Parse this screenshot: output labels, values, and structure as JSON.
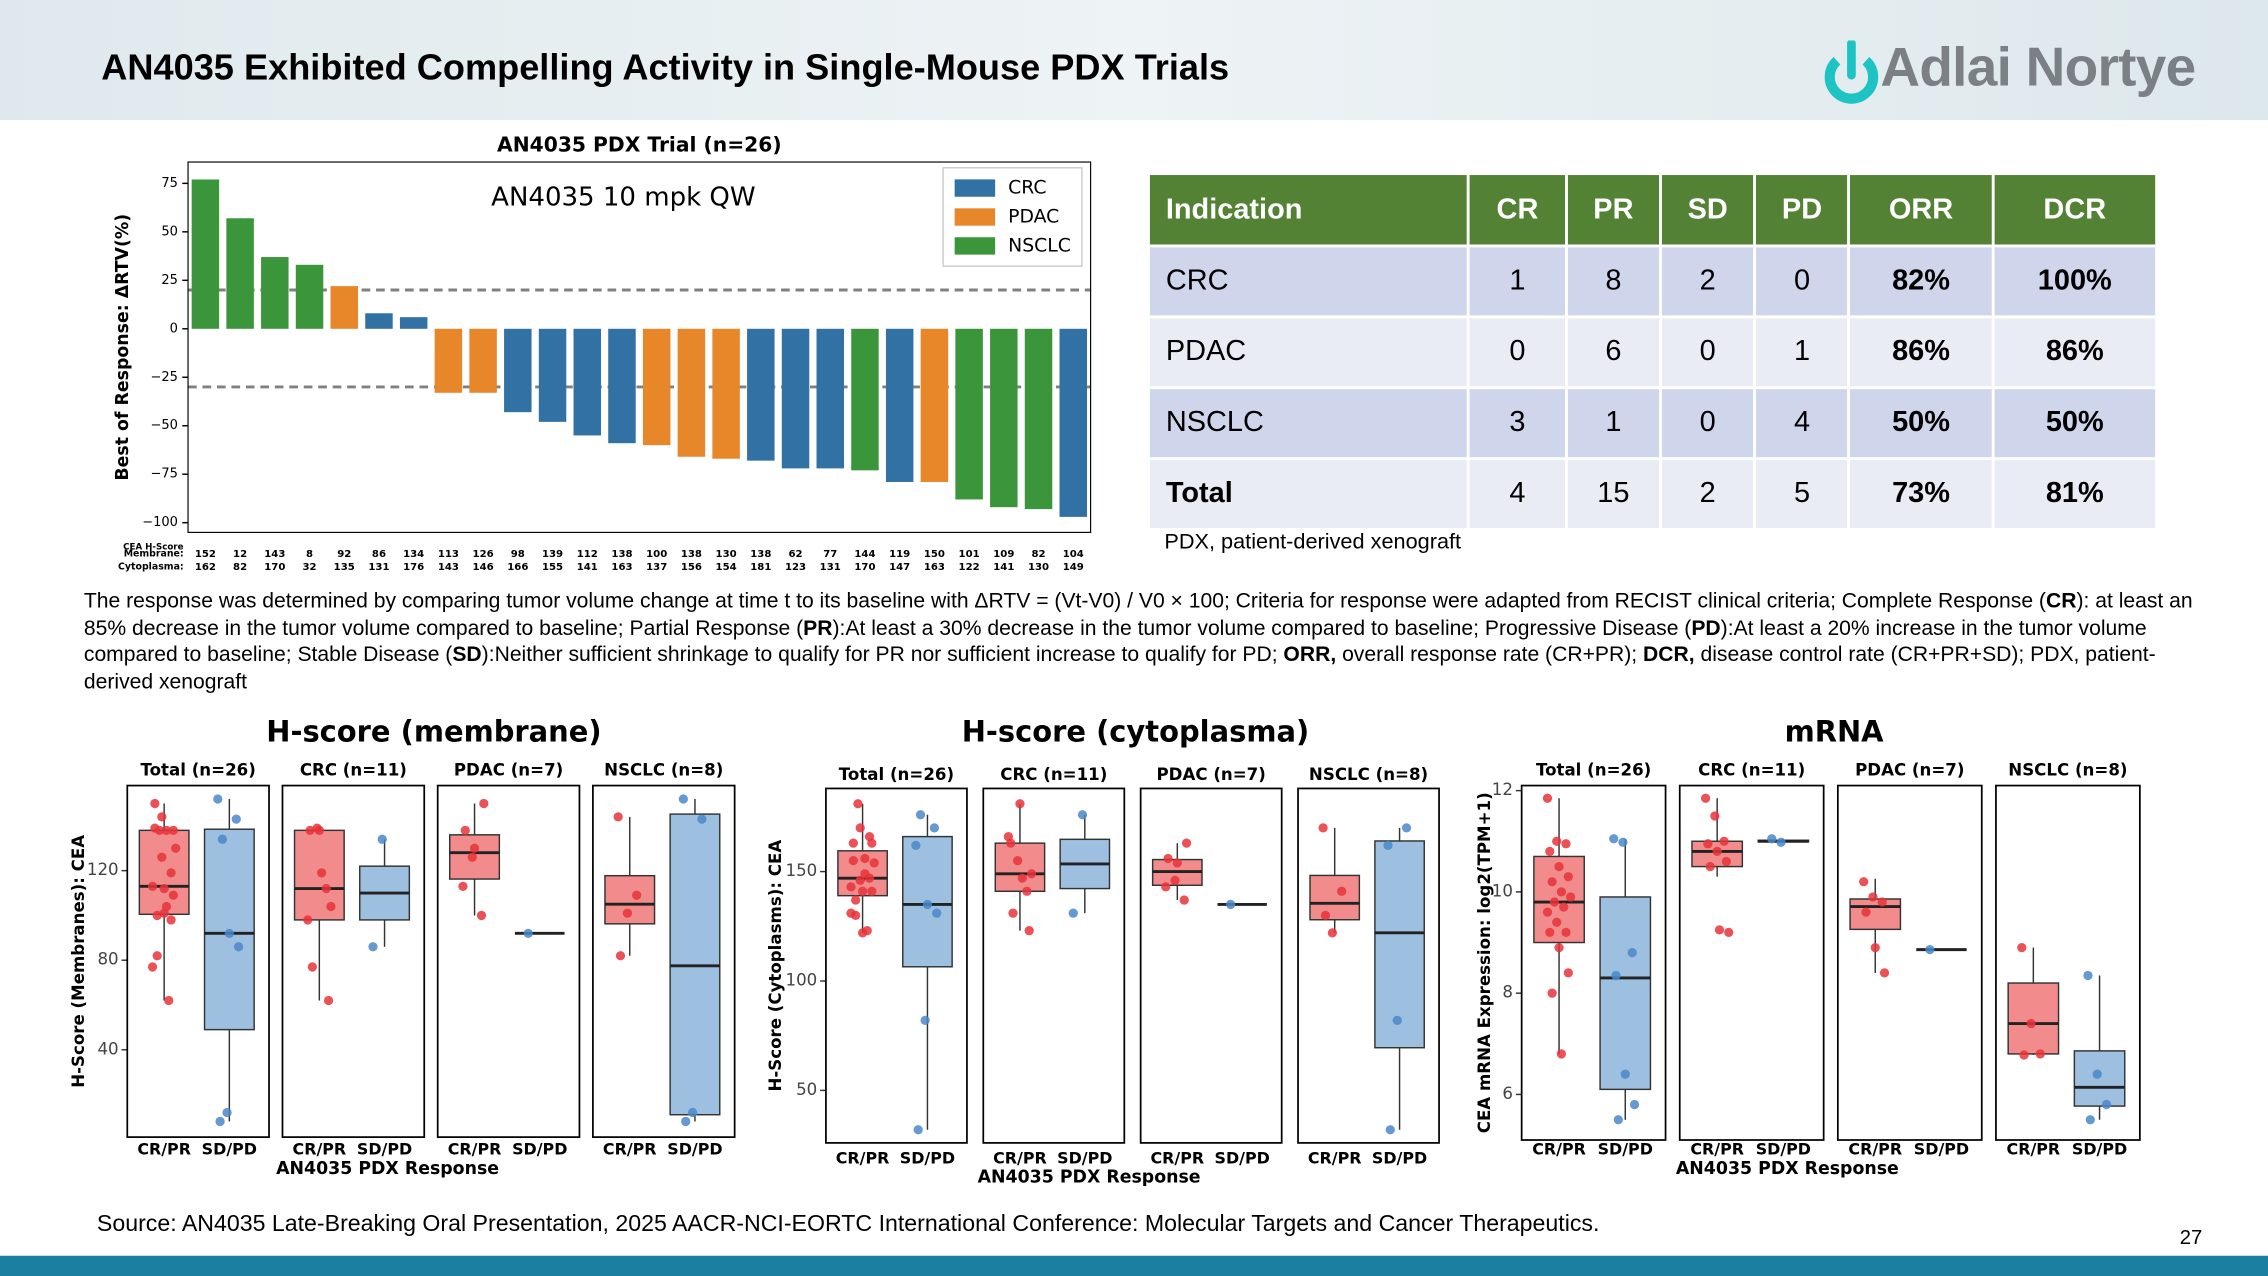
{
  "header": {
    "title": "AN4035 Exhibited Compelling Activity in Single-Mouse PDX Trials",
    "logo": "Adlai Nortye"
  },
  "chart_data": [
    {
      "type": "waterfall",
      "title": "AN4035 PDX Trial (n=26)",
      "ylabel": "Best of Response: ΔRTV(%)",
      "annotation": "AN4035 10 mpk QW",
      "ylim": [
        -105,
        86
      ],
      "yticks": [
        {
          "value": -100,
          "label": "−100"
        },
        {
          "value": -75,
          "label": "−75"
        },
        {
          "value": -50,
          "label": "−50"
        },
        {
          "value": -25,
          "label": "−25"
        },
        0,
        25,
        50,
        75
      ],
      "hlines": [
        20,
        -30
      ],
      "legend": "upper right",
      "series": [
        {
          "name": "CRC",
          "color": "#3271a4",
          "values": [
            null,
            null,
            null,
            null,
            null,
            8,
            6,
            null,
            null,
            -43,
            -48,
            -55,
            -59,
            null,
            null,
            null,
            -68,
            -72,
            -72,
            null,
            -79,
            null,
            null,
            null,
            null,
            -97
          ]
        },
        {
          "name": "PDAC",
          "color": "#e8862a",
          "values": [
            null,
            null,
            null,
            null,
            22,
            null,
            null,
            -33,
            -33,
            null,
            null,
            null,
            null,
            -60,
            -66,
            -67,
            null,
            null,
            null,
            null,
            null,
            -79,
            null,
            null,
            null,
            null
          ]
        },
        {
          "name": "NSCLC",
          "color": "#3a953b",
          "values": [
            77,
            57,
            37,
            33,
            null,
            null,
            null,
            null,
            null,
            null,
            null,
            null,
            null,
            null,
            null,
            null,
            null,
            null,
            null,
            -73,
            null,
            null,
            -88,
            -92,
            -93,
            null
          ]
        }
      ],
      "h_score_title": "CEA H-Score",
      "h_score_rows": [
        {
          "label": "Membrane:",
          "values": [
            152,
            12,
            143,
            8,
            92,
            86,
            134,
            113,
            126,
            98,
            139,
            112,
            138,
            100,
            138,
            130,
            138,
            62,
            77,
            144,
            119,
            150,
            101,
            109,
            82,
            104
          ]
        },
        {
          "label": "Cytoplasma:",
          "values": [
            162,
            82,
            170,
            32,
            135,
            131,
            176,
            143,
            146,
            166,
            155,
            141,
            163,
            137,
            156,
            154,
            181,
            123,
            131,
            170,
            147,
            163,
            122,
            141,
            130,
            149
          ]
        }
      ]
    },
    {
      "type": "box",
      "title": "H-score (membrane)",
      "ylabel": "H-Score (Membranes): CEA",
      "xlabel": "AN4035 PDX Response",
      "ylim": [
        1,
        158
      ],
      "yticks": [
        40,
        80,
        120
      ],
      "categories": [
        "CR/PR",
        "SD/PD"
      ],
      "colors": [
        "#f28c8c",
        "#9dbfe0"
      ],
      "point_colors": [
        "#e8323a",
        "#4a87c9"
      ],
      "facets": [
        {
          "title": "Total (n=26)",
          "groups": [
            {
              "box": [
                62,
                100.5,
                113,
                138,
                150
              ],
              "points": [
                113,
                126,
                98,
                139,
                112,
                138,
                100,
                138,
                130,
                138,
                62,
                77,
                144,
                119,
                150,
                101,
                109,
                82,
                104
              ]
            },
            {
              "box": [
                8,
                49,
                92,
                138.5,
                152
              ],
              "points": [
                152,
                12,
                143,
                8,
                92,
                86,
                134
              ]
            }
          ]
        },
        {
          "title": "CRC (n=11)",
          "groups": [
            {
              "box": [
                62,
                98,
                112,
                138,
                139
              ],
              "points": [
                98,
                139,
                112,
                138,
                138,
                62,
                77,
                119,
                104
              ]
            },
            {
              "box": [
                86,
                98,
                110,
                122,
                134
              ],
              "points": [
                86,
                134
              ]
            }
          ]
        },
        {
          "title": "PDAC (n=7)",
          "groups": [
            {
              "box": [
                100,
                116.25,
                128,
                136,
                150
              ],
              "points": [
                113,
                126,
                100,
                138,
                130,
                150
              ]
            },
            {
              "box": [
                92,
                92,
                92,
                92,
                92
              ],
              "points": [
                92
              ]
            }
          ]
        },
        {
          "title": "NSCLC (n=8)",
          "groups": [
            {
              "box": [
                82,
                96.25,
                105,
                117.75,
                144
              ],
              "points": [
                144,
                101,
                109,
                82
              ]
            },
            {
              "box": [
                8,
                11,
                77.5,
                145.25,
                152
              ],
              "points": [
                152,
                12,
                143,
                8
              ]
            }
          ]
        }
      ]
    },
    {
      "type": "box",
      "title": "H-score (cytoplasma)",
      "ylabel": "H-Score (Cytoplasms): CEA",
      "xlabel": "AN4035 PDX Response",
      "ylim": [
        26,
        188
      ],
      "yticks": [
        50,
        100,
        150
      ],
      "categories": [
        "CR/PR",
        "SD/PD"
      ],
      "colors": [
        "#f28c8c",
        "#9dbfe0"
      ],
      "point_colors": [
        "#e8323a",
        "#4a87c9"
      ],
      "facets": [
        {
          "title": "Total (n=26)",
          "groups": [
            {
              "box": [
                122,
                139,
                147,
                159.5,
                181
              ],
              "points": [
                143,
                146,
                166,
                155,
                141,
                163,
                137,
                156,
                154,
                181,
                123,
                131,
                170,
                147,
                163,
                122,
                141,
                130,
                149
              ]
            },
            {
              "box": [
                32,
                106.5,
                135,
                166,
                176
              ],
              "points": [
                162,
                82,
                170,
                32,
                135,
                131,
                176
              ]
            }
          ]
        },
        {
          "title": "CRC (n=11)",
          "groups": [
            {
              "box": [
                123,
                141,
                149,
                163,
                181
              ],
              "points": [
                166,
                155,
                141,
                163,
                181,
                123,
                131,
                147,
                149
              ]
            },
            {
              "box": [
                131,
                142.25,
                153.5,
                164.75,
                176
              ],
              "points": [
                131,
                176
              ]
            }
          ]
        },
        {
          "title": "PDAC (n=7)",
          "groups": [
            {
              "box": [
                137,
                143.75,
                150,
                155.5,
                163
              ],
              "points": [
                143,
                146,
                137,
                156,
                154,
                163
              ]
            },
            {
              "box": [
                135,
                135,
                135,
                135,
                135
              ],
              "points": [
                135
              ]
            }
          ]
        },
        {
          "title": "NSCLC (n=8)",
          "groups": [
            {
              "box": [
                122,
                128,
                135.5,
                148.25,
                170
              ],
              "points": [
                170,
                122,
                141,
                130
              ]
            },
            {
              "box": [
                32,
                69.5,
                122,
                164,
                170
              ],
              "points": [
                162,
                82,
                170,
                32
              ]
            }
          ]
        }
      ]
    },
    {
      "type": "box",
      "title": "mRNA",
      "ylabel": "CEA mRNA Expression: log2(TPM+1)",
      "xlabel": "AN4035 PDX Response",
      "ylim": [
        5.1,
        12.1
      ],
      "yticks": [
        6,
        8,
        10,
        12
      ],
      "categories": [
        "CR/PR",
        "SD/PD"
      ],
      "colors": [
        "#f28c8c",
        "#9dbfe0"
      ],
      "point_colors": [
        "#e8323a",
        "#4a87c9"
      ],
      "facets": [
        {
          "title": "Total (n=26)",
          "groups": [
            {
              "box": [
                6.8,
                9.0,
                9.8,
                10.7,
                11.85
              ],
              "points": [
                11.85,
                11.0,
                10.95,
                10.8,
                10.5,
                10.3,
                10.2,
                10.0,
                9.9,
                9.8,
                9.7,
                9.6,
                9.4,
                9.2,
                9.2,
                8.9,
                8.4,
                8.0,
                6.8
              ]
            },
            {
              "box": [
                5.5,
                6.1,
                8.3,
                9.9,
                11.05
              ],
              "points": [
                11.05,
                10.98,
                8.8,
                8.35,
                6.4,
                5.8,
                5.5
              ]
            }
          ]
        },
        {
          "title": "CRC (n=11)",
          "groups": [
            {
              "box": [
                10.3,
                10.5,
                10.8,
                11.0,
                11.85
              ],
              "points": [
                11.85,
                11.5,
                11.0,
                10.95,
                10.8,
                10.6,
                10.5,
                9.25,
                9.2
              ]
            },
            {
              "box": [
                10.98,
                10.99,
                11.0,
                11.02,
                11.05
              ],
              "points": [
                11.05,
                10.98
              ]
            }
          ]
        },
        {
          "title": "PDAC (n=7)",
          "groups": [
            {
              "box": [
                8.4,
                9.26,
                9.71,
                9.86,
                10.26
              ],
              "points": [
                10.2,
                9.9,
                9.8,
                9.6,
                8.9,
                8.4
              ]
            },
            {
              "box": [
                8.86,
                8.86,
                8.86,
                8.86,
                8.86
              ],
              "points": [
                8.86
              ]
            }
          ]
        },
        {
          "title": "NSCLC (n=8)",
          "groups": [
            {
              "box": [
                6.78,
                6.8,
                7.4,
                8.2,
                8.9
              ],
              "points": [
                8.9,
                7.4,
                6.8,
                6.78
              ]
            },
            {
              "box": [
                5.5,
                5.77,
                6.14,
                6.86,
                8.35
              ],
              "points": [
                8.35,
                6.4,
                5.8,
                5.5
              ]
            }
          ]
        }
      ]
    }
  ],
  "table": {
    "columns": [
      "Indication",
      "CR",
      "PR",
      "SD",
      "PD",
      "ORR",
      "DCR"
    ],
    "rows": [
      [
        "CRC",
        1,
        8,
        2,
        0,
        "82%",
        "100%"
      ],
      [
        "PDAC",
        0,
        6,
        0,
        1,
        "86%",
        "86%"
      ],
      [
        "NSCLC",
        3,
        1,
        0,
        4,
        "50%",
        "50%"
      ],
      [
        "Total",
        4,
        15,
        2,
        5,
        "73%",
        "81%"
      ]
    ],
    "note": "PDX, patient-derived xenograft"
  },
  "footnote": [
    "The response was determined by comparing tumor volume change at time t to its baseline with ΔRTV = (Vt-V0) / V0 × 100; Criteria for response were adapted from RECIST clinical criteria; Complete Response (",
    "CR",
    "): at least an 85% decrease in the tumor volume compared to baseline; Partial Response (",
    "PR",
    "):At least a 30% decrease in the tumor volume compared to baseline; Progressive Disease (",
    "PD",
    "):At least a 20% increase in the tumor volume compared to baseline; Stable Disease (",
    "SD",
    "):Neither sufficient shrinkage to qualify for PR nor sufficient increase to qualify for PD; ",
    "ORR,",
    " overall response rate (CR+PR); ",
    "DCR,",
    " disease control rate (CR+PR+SD); PDX, patient-derived xenograft"
  ],
  "source": "Source: AN4035 Late-Breaking Oral Presentation, 2025 AACR-NCI-EORTC International Conference: Molecular Targets and Cancer Therapeutics.",
  "page_number": "27"
}
